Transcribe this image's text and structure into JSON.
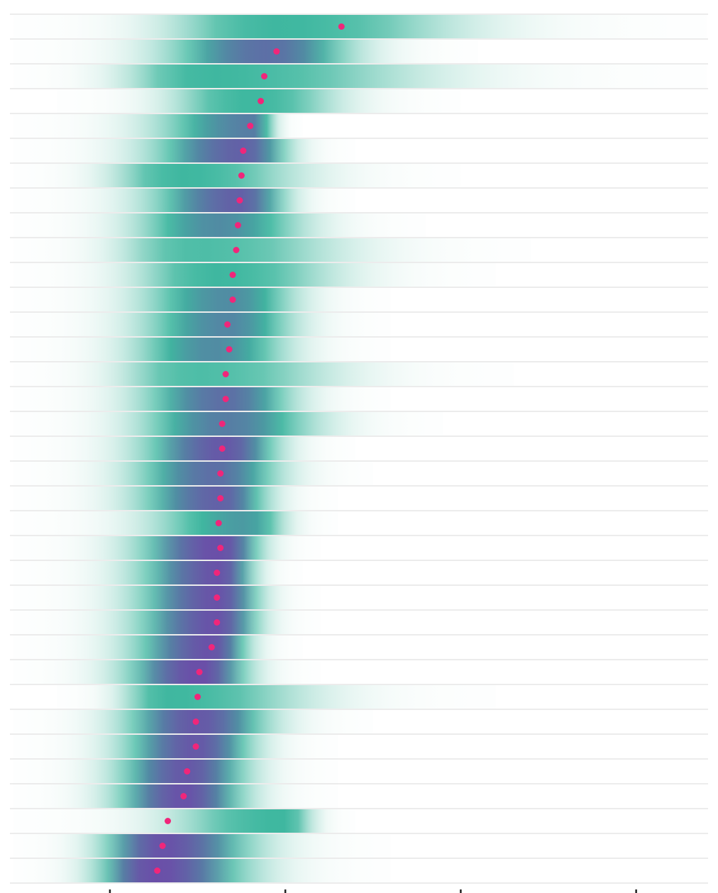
{
  "colors": {
    "background": "#ffffff",
    "row_separator": "#d8d8d8",
    "density_low": "#e6f4ef",
    "density_mid": "#3fb8a0",
    "density_high": "#6a4fa8",
    "point": "#f0267a",
    "axis": "#222222"
  },
  "chart_data": {
    "type": "gradient-interval",
    "title": "",
    "xlabel": "",
    "ylabel": "",
    "xlim": [
      -0.57,
      3.41
    ],
    "x_ticks": [
      0,
      1,
      2,
      3
    ],
    "x_tick_labels": [
      "",
      "",
      "",
      ""
    ],
    "grid": false,
    "legend": "none",
    "rows": [
      {
        "point": 1.32,
        "lo": -0.55,
        "hi": 3.4,
        "peak": 0.95,
        "intensity": 0.55
      },
      {
        "point": 0.95,
        "lo": -0.55,
        "hi": 2.1,
        "peak": 0.9,
        "intensity": 0.8
      },
      {
        "point": 0.88,
        "lo": -0.55,
        "hi": 3.4,
        "peak": 0.55,
        "intensity": 0.55
      },
      {
        "point": 0.86,
        "lo": -0.3,
        "hi": 2.0,
        "peak": 0.8,
        "intensity": 0.55
      },
      {
        "point": 0.8,
        "lo": -0.55,
        "hi": 1.1,
        "peak": 0.82,
        "intensity": 0.75
      },
      {
        "point": 0.76,
        "lo": -0.55,
        "hi": 1.4,
        "peak": 0.76,
        "intensity": 0.85
      },
      {
        "point": 0.75,
        "lo": -0.55,
        "hi": 2.0,
        "peak": 0.42,
        "intensity": 0.55
      },
      {
        "point": 0.74,
        "lo": -0.55,
        "hi": 1.4,
        "peak": 0.74,
        "intensity": 0.85
      },
      {
        "point": 0.73,
        "lo": -0.55,
        "hi": 1.8,
        "peak": 0.62,
        "intensity": 0.7
      },
      {
        "point": 0.72,
        "lo": -0.55,
        "hi": 2.4,
        "peak": 0.5,
        "intensity": 0.5
      },
      {
        "point": 0.7,
        "lo": -0.55,
        "hi": 2.2,
        "peak": 0.62,
        "intensity": 0.55
      },
      {
        "point": 0.7,
        "lo": -0.55,
        "hi": 1.6,
        "peak": 0.68,
        "intensity": 0.7
      },
      {
        "point": 0.67,
        "lo": -0.55,
        "hi": 1.6,
        "peak": 0.67,
        "intensity": 0.72
      },
      {
        "point": 0.68,
        "lo": -0.55,
        "hi": 1.6,
        "peak": 0.6,
        "intensity": 0.7
      },
      {
        "point": 0.66,
        "lo": -0.55,
        "hi": 2.3,
        "peak": 0.5,
        "intensity": 0.5
      },
      {
        "point": 0.66,
        "lo": -0.55,
        "hi": 1.6,
        "peak": 0.66,
        "intensity": 0.8
      },
      {
        "point": 0.64,
        "lo": -0.55,
        "hi": 1.9,
        "peak": 0.66,
        "intensity": 0.75
      },
      {
        "point": 0.64,
        "lo": -0.55,
        "hi": 1.4,
        "peak": 0.66,
        "intensity": 0.88
      },
      {
        "point": 0.63,
        "lo": -0.55,
        "hi": 1.5,
        "peak": 0.6,
        "intensity": 0.8
      },
      {
        "point": 0.63,
        "lo": -0.55,
        "hi": 1.3,
        "peak": 0.63,
        "intensity": 0.85
      },
      {
        "point": 0.62,
        "lo": -0.55,
        "hi": 1.3,
        "peak": 0.78,
        "intensity": 0.65
      },
      {
        "point": 0.63,
        "lo": -0.55,
        "hi": 1.2,
        "peak": 0.63,
        "intensity": 0.92
      },
      {
        "point": 0.61,
        "lo": -0.55,
        "hi": 1.1,
        "peak": 0.63,
        "intensity": 0.9
      },
      {
        "point": 0.61,
        "lo": -0.55,
        "hi": 1.2,
        "peak": 0.62,
        "intensity": 0.9
      },
      {
        "point": 0.61,
        "lo": -0.55,
        "hi": 1.2,
        "peak": 0.61,
        "intensity": 0.9
      },
      {
        "point": 0.58,
        "lo": -0.55,
        "hi": 1.1,
        "peak": 0.58,
        "intensity": 0.9
      },
      {
        "point": 0.51,
        "lo": -0.55,
        "hi": 1.2,
        "peak": 0.51,
        "intensity": 0.92
      },
      {
        "point": 0.5,
        "lo": -0.3,
        "hi": 2.2,
        "peak": 0.33,
        "intensity": 0.55
      },
      {
        "point": 0.49,
        "lo": -0.55,
        "hi": 1.5,
        "peak": 0.5,
        "intensity": 0.88
      },
      {
        "point": 0.49,
        "lo": -0.55,
        "hi": 1.3,
        "peak": 0.49,
        "intensity": 0.88
      },
      {
        "point": 0.44,
        "lo": -0.55,
        "hi": 1.3,
        "peak": 0.44,
        "intensity": 0.88
      },
      {
        "point": 0.42,
        "lo": -0.55,
        "hi": 1.3,
        "peak": 0.42,
        "intensity": 0.9
      },
      {
        "point": 0.33,
        "lo": -0.55,
        "hi": 1.4,
        "peak": 0.98,
        "intensity": 0.55
      },
      {
        "point": 0.3,
        "lo": -0.55,
        "hi": 1.6,
        "peak": 0.3,
        "intensity": 0.9
      },
      {
        "point": 0.27,
        "lo": -0.55,
        "hi": 1.6,
        "peak": 0.25,
        "intensity": 0.92
      }
    ]
  }
}
